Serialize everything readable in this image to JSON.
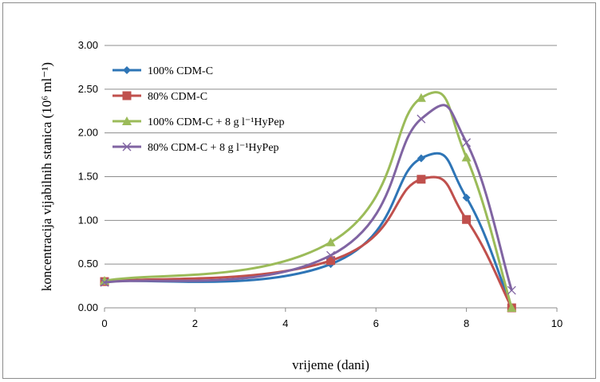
{
  "chart_data": {
    "type": "line",
    "title": "",
    "xlabel": "vrijeme (dani)",
    "ylabel": "koncentracija vijabilnih stanica (10⁶ ml⁻¹)",
    "xlim": [
      0,
      10
    ],
    "ylim": [
      0,
      3
    ],
    "xticks": [
      "0",
      "2",
      "4",
      "6",
      "8",
      "10"
    ],
    "yticks": [
      "0.00",
      "0.50",
      "1.00",
      "1.50",
      "2.00",
      "2.50",
      "3.00"
    ],
    "grid": "horizontal",
    "legend_position": "top-left",
    "series": [
      {
        "name": "100% CDM-C",
        "color": "#2e75b6",
        "marker": "diamond",
        "x": [
          0,
          5,
          7,
          8,
          9
        ],
        "y": [
          0.3,
          0.5,
          1.71,
          1.26,
          0.0
        ]
      },
      {
        "name": "80% CDM-C",
        "color": "#c0504d",
        "marker": "square",
        "x": [
          0,
          5,
          7,
          8,
          9
        ],
        "y": [
          0.3,
          0.54,
          1.47,
          1.01,
          0.0
        ]
      },
      {
        "name": "100% CDM-C + 8 g l⁻¹HyPep",
        "color": "#9bbb59",
        "marker": "triangle",
        "x": [
          0,
          5,
          7,
          8,
          9
        ],
        "y": [
          0.31,
          0.75,
          2.4,
          1.72,
          0.0
        ]
      },
      {
        "name": "80% CDM-C + 8 g l⁻¹HyPep",
        "color": "#8064a2",
        "marker": "x",
        "x": [
          0,
          5,
          7,
          8,
          9
        ],
        "y": [
          0.29,
          0.6,
          2.16,
          1.89,
          0.2
        ]
      }
    ]
  }
}
